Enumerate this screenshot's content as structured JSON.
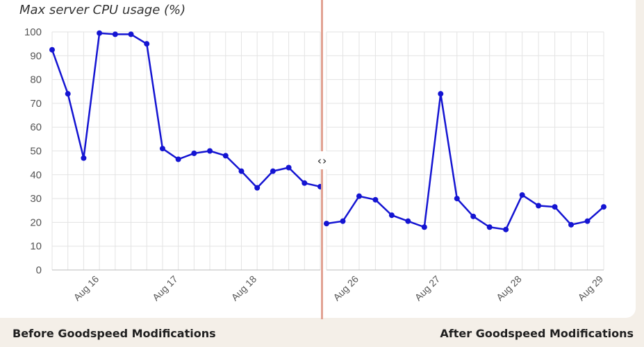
{
  "chart_data": {
    "type": "line",
    "title": "Max server CPU usage (%)",
    "ylim": [
      0,
      100
    ],
    "yticks": [
      0,
      10,
      20,
      30,
      40,
      50,
      60,
      70,
      80,
      90,
      100
    ],
    "grid": true,
    "line_color": "#1414d2",
    "panels": [
      {
        "caption": "Before Goodspeed Modifications",
        "values": [
          92.5,
          74,
          47,
          99.5,
          99,
          99,
          95,
          51,
          46.5,
          49,
          50,
          48,
          41.5,
          34.5,
          41.5,
          43,
          36.5,
          35
        ],
        "x_labels": [
          {
            "label": "Aug 16",
            "index": 3
          },
          {
            "label": "Aug 17",
            "index": 8
          },
          {
            "label": "Aug 18",
            "index": 13
          }
        ]
      },
      {
        "caption": "After Goodspeed Modifications",
        "values": [
          19.5,
          20.5,
          31,
          29.5,
          23,
          20.5,
          18,
          74,
          30,
          22.5,
          18,
          17,
          31.5,
          27,
          26.5,
          19,
          20.5,
          26.5
        ],
        "x_labels": [
          {
            "label": "Aug 26",
            "index": 2
          },
          {
            "label": "Aug 27",
            "index": 7
          },
          {
            "label": "Aug 28",
            "index": 12
          },
          {
            "label": "Aug 29",
            "index": 17
          }
        ]
      }
    ]
  }
}
